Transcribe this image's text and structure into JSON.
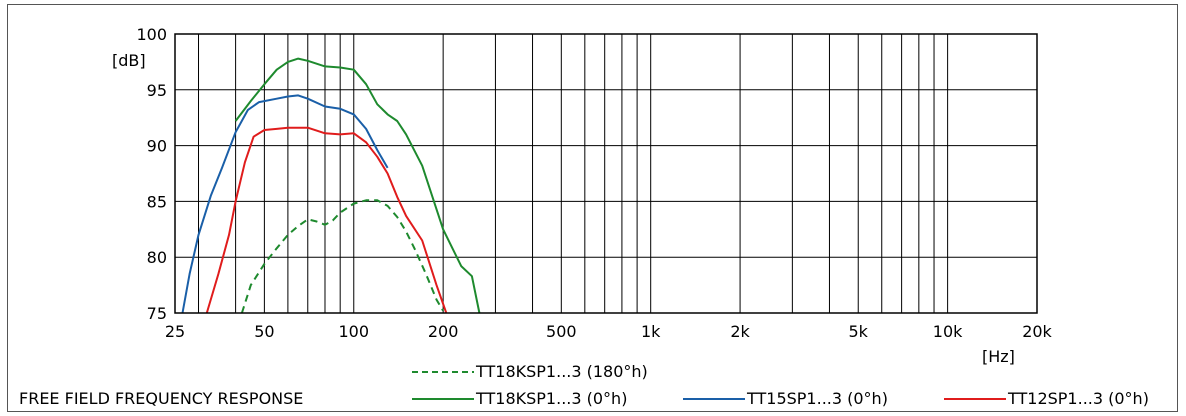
{
  "chart_data": {
    "type": "line",
    "title": "FREE FIELD FREQUENCY RESPONSE",
    "xlabel": "[Hz]",
    "ylabel": "[dB]",
    "x_scale": "log",
    "xlim": [
      25,
      20000
    ],
    "ylim": [
      75,
      100
    ],
    "grid": true,
    "legend_position": "bottom",
    "x_tick_labels": [
      "25",
      "50",
      "100",
      "200",
      "500",
      "1k",
      "2k",
      "5k",
      "10k",
      "20k"
    ],
    "x_tick_values": [
      25,
      50,
      100,
      200,
      500,
      1000,
      2000,
      5000,
      10000,
      20000
    ],
    "y_ticks": [
      75,
      80,
      85,
      90,
      95,
      100
    ],
    "x_gridlines": [
      25,
      30,
      40,
      50,
      60,
      70,
      80,
      90,
      100,
      200,
      300,
      400,
      500,
      600,
      700,
      800,
      900,
      1000,
      2000,
      3000,
      4000,
      5000,
      6000,
      7000,
      8000,
      9000,
      10000,
      20000
    ],
    "series": [
      {
        "name": "TT18KSP1...3 (180°h)",
        "color": "#1e8a2e",
        "dashed": true,
        "x": [
          42,
          45,
          50,
          55,
          60,
          65,
          70,
          75,
          80,
          85,
          90,
          100,
          110,
          120,
          130,
          140,
          150,
          160,
          175,
          190,
          200
        ],
        "y": [
          75,
          77.5,
          79.4,
          80.8,
          82.0,
          82.8,
          83.4,
          83.2,
          82.9,
          83.3,
          84.0,
          84.8,
          85.1,
          85.1,
          84.6,
          83.6,
          82.3,
          80.8,
          78.5,
          76.2,
          75.2
        ]
      },
      {
        "name": "TT18KSP1...3 (0°h)",
        "color": "#1e8a2e",
        "dashed": false,
        "x": [
          40,
          45,
          50,
          55,
          60,
          65,
          70,
          80,
          90,
          100,
          110,
          120,
          130,
          140,
          150,
          170,
          200,
          230,
          250,
          265
        ],
        "y": [
          92.2,
          94.0,
          95.5,
          96.8,
          97.5,
          97.8,
          97.6,
          97.1,
          97.0,
          96.8,
          95.5,
          93.7,
          92.8,
          92.2,
          91.0,
          88.2,
          82.5,
          79.2,
          78.3,
          75.0
        ]
      },
      {
        "name": "TT15SP1...3 (0°h)",
        "color": "#1a5fa8",
        "dashed": false,
        "x": [
          26.5,
          28,
          30,
          33,
          36,
          40,
          44,
          48,
          55,
          60,
          65,
          70,
          80,
          90,
          100,
          110,
          120,
          130
        ],
        "y": [
          75,
          78.5,
          82.0,
          85.5,
          88.0,
          91.2,
          93.2,
          93.9,
          94.2,
          94.4,
          94.5,
          94.2,
          93.5,
          93.3,
          92.8,
          91.5,
          89.6,
          88.0
        ]
      },
      {
        "name": "TT12SP1...3 (0°h)",
        "color": "#e01c1c",
        "dashed": false,
        "x": [
          32,
          35,
          38,
          40,
          43,
          46,
          50,
          55,
          60,
          70,
          80,
          90,
          100,
          110,
          120,
          130,
          140,
          150,
          170,
          190,
          205
        ],
        "y": [
          75,
          78.5,
          82.0,
          85.0,
          88.5,
          90.8,
          91.4,
          91.5,
          91.6,
          91.6,
          91.1,
          91.0,
          91.1,
          90.3,
          89.0,
          87.5,
          85.4,
          83.7,
          81.5,
          77.5,
          75.0
        ]
      }
    ]
  }
}
